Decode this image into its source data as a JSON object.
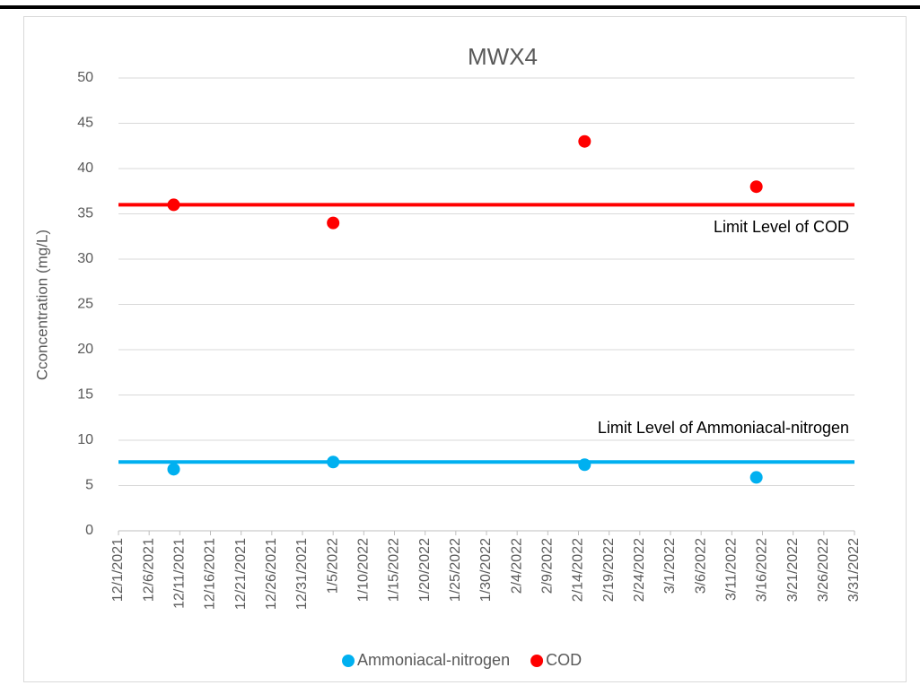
{
  "chart_data": {
    "type": "scatter",
    "title": "MWX4",
    "ylabel": "Cconcentration (mg/L)",
    "xlim": [
      "12/1/2021",
      "3/31/2022"
    ],
    "xticks": [
      "12/1/2021",
      "12/6/2021",
      "12/11/2021",
      "12/16/2021",
      "12/21/2021",
      "12/26/2021",
      "12/31/2021",
      "1/5/2022",
      "1/10/2022",
      "1/15/2022",
      "1/20/2022",
      "1/25/2022",
      "1/30/2022",
      "2/4/2022",
      "2/9/2022",
      "2/14/2022",
      "2/19/2022",
      "2/24/2022",
      "3/1/2022",
      "3/6/2022",
      "3/11/2022",
      "3/16/2022",
      "3/21/2022",
      "3/26/2022",
      "3/31/2022"
    ],
    "ylim": [
      0,
      50
    ],
    "yticks": [
      0,
      5,
      10,
      15,
      20,
      25,
      30,
      35,
      40,
      45,
      50
    ],
    "grid": true,
    "legend": "bottom",
    "series": [
      {
        "name": "Ammoniacal-nitrogen",
        "color": "#00b0f0",
        "x": [
          "12/10/2021",
          "1/5/2022",
          "2/15/2022",
          "3/15/2022"
        ],
        "values": [
          6.8,
          7.6,
          7.3,
          5.9
        ]
      },
      {
        "name": "COD",
        "color": "#ff0000",
        "x": [
          "12/10/2021",
          "1/5/2022",
          "2/15/2022",
          "3/15/2022"
        ],
        "values": [
          36,
          34,
          43,
          38
        ]
      }
    ],
    "reference_lines": [
      {
        "label": "Limit Level of COD",
        "value": 36,
        "color": "#ff0000"
      },
      {
        "label": "Limit Level of Ammoniacal-nitrogen",
        "value": 7.6,
        "color": "#00b0f0"
      }
    ]
  }
}
